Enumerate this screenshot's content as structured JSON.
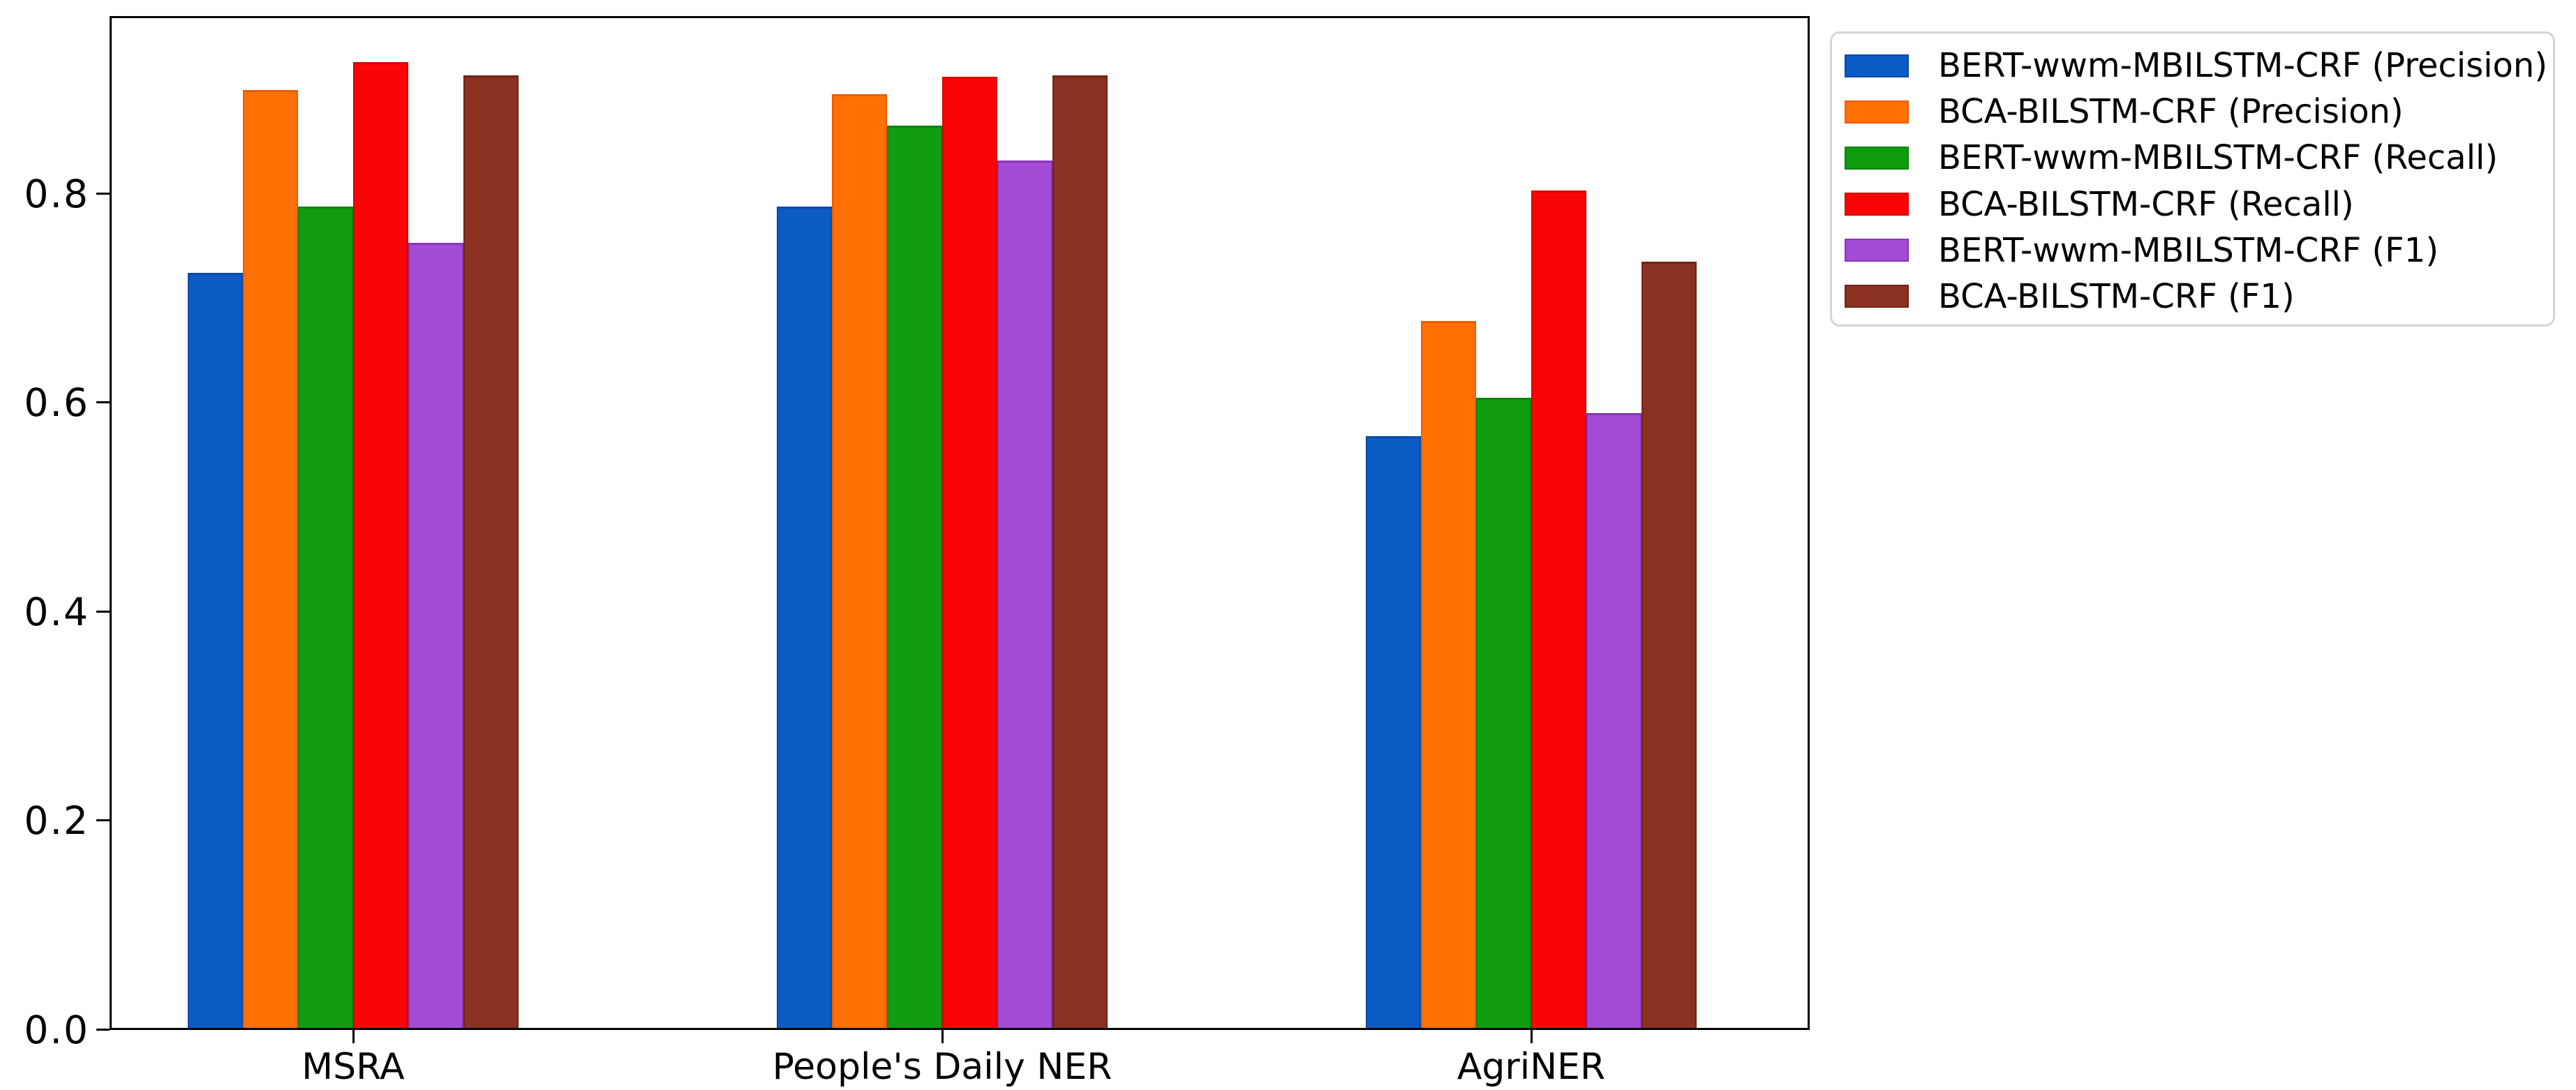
{
  "chart_data": {
    "type": "bar",
    "title": "",
    "xlabel": "",
    "ylabel": "",
    "categories": [
      "MSRA",
      "People's Daily NER",
      "AgriNER"
    ],
    "series": [
      {
        "name": "BERT-wwm-MBILSTM-CRF (Precision)",
        "color": "#0b5bc5",
        "edge": "#0a4aa4",
        "values": [
          0.722,
          0.786,
          0.566
        ]
      },
      {
        "name": "BCA-BILSTM-CRF (Precision)",
        "color": "#ff7005",
        "edge": "#ef5a00",
        "values": [
          0.897,
          0.893,
          0.676
        ]
      },
      {
        "name": "BERT-wwm-MBILSTM-CRF (Recall)",
        "color": "#0f9d0f",
        "edge": "#0b840b",
        "values": [
          0.786,
          0.863,
          0.603
        ]
      },
      {
        "name": "BCA-BILSTM-CRF (Recall)",
        "color": "#fa0505",
        "edge": "#d80000",
        "values": [
          0.924,
          0.91,
          0.801
        ]
      },
      {
        "name": "BERT-wwm-MBILSTM-CRF (F1)",
        "color": "#a24bd5",
        "edge": "#8a33bd",
        "values": [
          0.751,
          0.83,
          0.588
        ]
      },
      {
        "name": "BCA-BILSTM-CRF (F1)",
        "color": "#8b3122",
        "edge": "#6e2418",
        "values": [
          0.911,
          0.911,
          0.733
        ]
      }
    ],
    "yticks": [
      0.0,
      0.2,
      0.4,
      0.6,
      0.8
    ],
    "ytick_labels": [
      "0.0",
      "0.2",
      "0.4",
      "0.6",
      "0.8"
    ],
    "ylim": [
      0,
      0.97
    ],
    "grid": false,
    "legend_position": "outside-right",
    "axis_color": "#000000",
    "background_color": "#ffffff"
  }
}
